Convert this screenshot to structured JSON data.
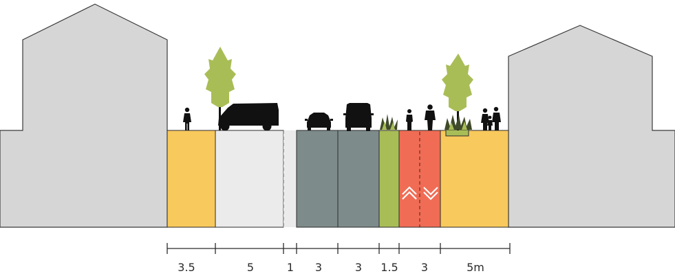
{
  "colors": {
    "building": "#d6d6d6",
    "building_stroke": "#3a3a3a",
    "sidewalk": "#f8c95c",
    "parking": "#ebebeb",
    "roadway": "#7e8b8b",
    "planting_strip": "#a9bd57",
    "bike_lane": "#f06c55",
    "tree_canopy": "#a9bd57",
    "silhouette": "#111111",
    "dimension_line": "#2b2b2b"
  },
  "icons": [
    "pedestrian-icon",
    "tree-icon",
    "van-icon",
    "car-icon",
    "grass-icon",
    "cyclist-icon",
    "family-icon",
    "chevron-up-icon",
    "chevron-down-icon"
  ],
  "dimensions": [
    "3.5",
    "5",
    "1",
    "3",
    "3",
    "1.5",
    "3",
    "5m"
  ]
}
